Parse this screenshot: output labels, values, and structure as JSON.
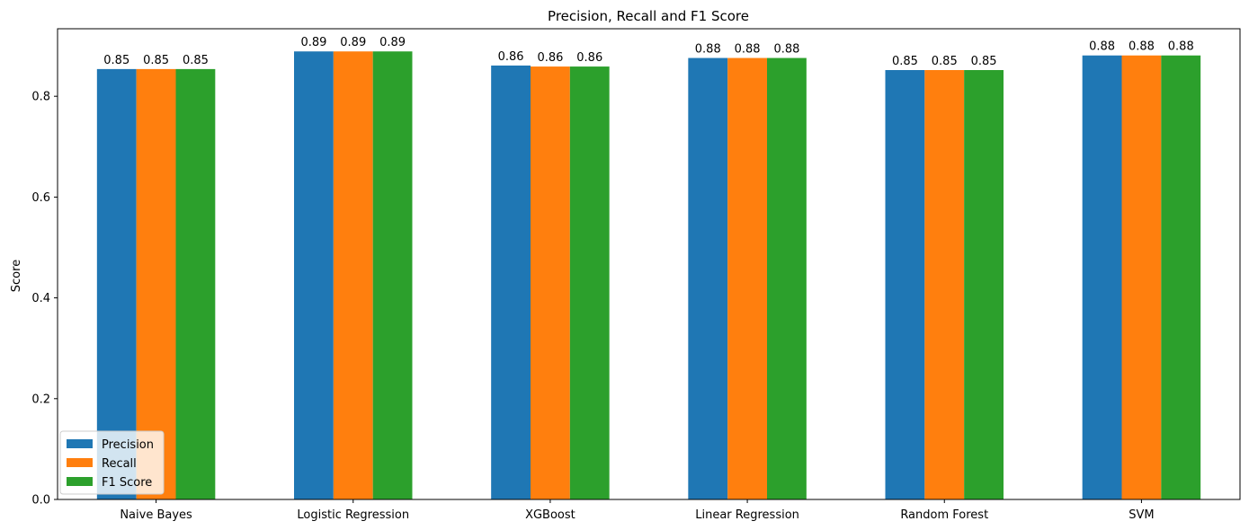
{
  "chart_data": {
    "type": "bar",
    "title": "Precision, Recall and F1 Score",
    "xlabel": "",
    "ylabel": "Score",
    "categories": [
      "Naive Bayes",
      "Logistic Regression",
      "XGBoost",
      "Linear Regression",
      "Random Forest",
      "SVM"
    ],
    "series": [
      {
        "name": "Precision",
        "color": "#1f77b4",
        "values": [
          0.854,
          0.889,
          0.861,
          0.876,
          0.852,
          0.881
        ],
        "labels": [
          "0.85",
          "0.89",
          "0.86",
          "0.88",
          "0.85",
          "0.88"
        ]
      },
      {
        "name": "Recall",
        "color": "#ff7f0e",
        "values": [
          0.854,
          0.889,
          0.859,
          0.876,
          0.852,
          0.881
        ],
        "labels": [
          "0.85",
          "0.89",
          "0.86",
          "0.88",
          "0.85",
          "0.88"
        ]
      },
      {
        "name": "F1 Score",
        "color": "#2ca02c",
        "values": [
          0.854,
          0.889,
          0.859,
          0.876,
          0.852,
          0.881
        ],
        "labels": [
          "0.85",
          "0.89",
          "0.86",
          "0.88",
          "0.85",
          "0.88"
        ]
      }
    ],
    "yticks": [
      0.0,
      0.2,
      0.4,
      0.6,
      0.8
    ],
    "ytick_labels": [
      "0.0",
      "0.2",
      "0.4",
      "0.6",
      "0.8"
    ],
    "ylim": [
      0,
      0.934
    ],
    "grid": false,
    "legend_position": "lower-left"
  }
}
